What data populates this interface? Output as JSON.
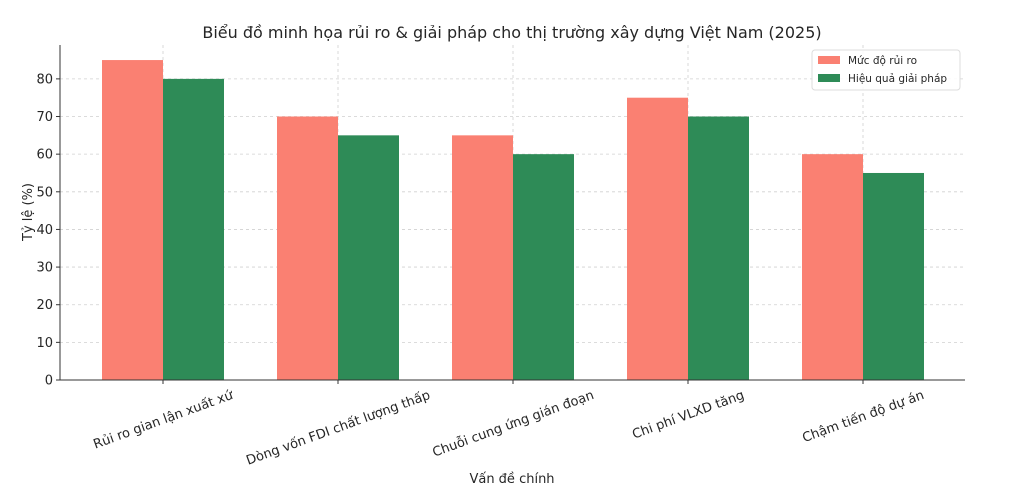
{
  "chart_data": {
    "type": "bar",
    "title": "Biểu đồ minh họa rủi ro & giải pháp cho thị trường xây dựng Việt Nam (2025)",
    "xlabel": "Vấn đề chính",
    "ylabel": "Tỷ lệ (%)",
    "ylim": [
      0,
      89
    ],
    "yticks": [
      0,
      10,
      20,
      30,
      40,
      50,
      60,
      70,
      80
    ],
    "grid": true,
    "legend_position": "top-right",
    "categories": [
      "Rủi ro gian lận xuất xứ",
      "Dòng vốn FDI chất lượng thấp",
      "Chuỗi cung ứng gián đoạn",
      "Chi phí VLXD tăng",
      "Chậm tiến độ dự án"
    ],
    "series": [
      {
        "name": "Mức độ rủi ro",
        "color": "#fa8072",
        "values": [
          85,
          70,
          65,
          75,
          60
        ]
      },
      {
        "name": "Hiệu quả giải pháp",
        "color": "#2e8b57",
        "values": [
          80,
          65,
          60,
          70,
          55
        ]
      }
    ]
  }
}
